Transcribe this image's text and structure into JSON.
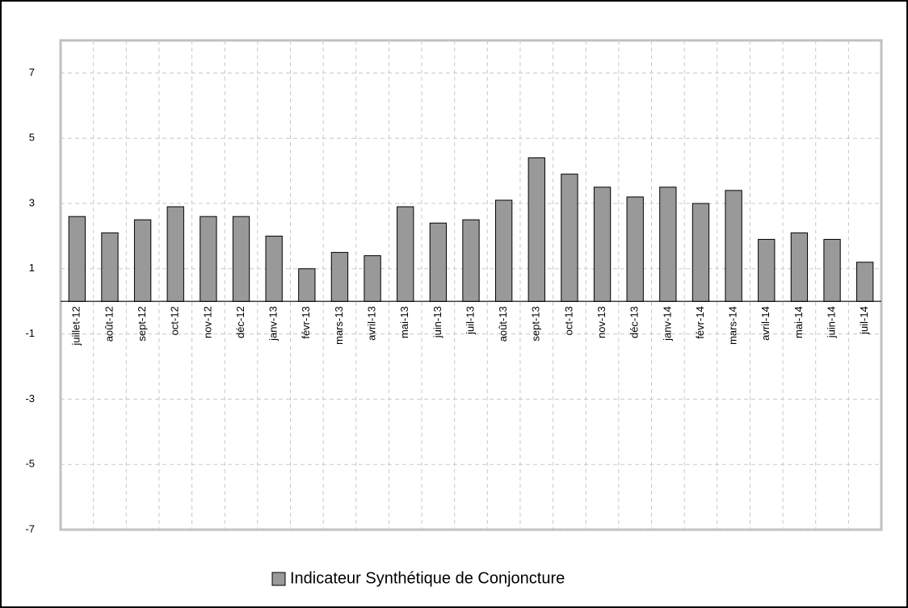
{
  "chart_data": {
    "type": "bar",
    "categories": [
      "juillet-12",
      "août-12",
      "sept-12",
      "oct-12",
      "nov-12",
      "déc-12",
      "janv-13",
      "févr-13",
      "mars-13",
      "avril-13",
      "mai-13",
      "juin-13",
      "juil-13",
      "août-13",
      "sept-13",
      "oct-13",
      "nov-13",
      "déc-13",
      "janv-14",
      "févr-14",
      "mars-14",
      "avril-14",
      "mai-14",
      "juin-14",
      "juil-14"
    ],
    "series": [
      {
        "name": "Indicateur Synthétique de Conjoncture",
        "color": "#999999",
        "values": [
          2.6,
          2.1,
          2.5,
          2.9,
          2.6,
          2.6,
          2.0,
          1.0,
          1.5,
          1.4,
          2.9,
          2.4,
          2.5,
          3.1,
          4.4,
          3.9,
          3.5,
          3.2,
          3.5,
          3.0,
          3.4,
          1.9,
          2.1,
          1.9,
          1.2
        ]
      }
    ],
    "ylim": [
      -7,
      8
    ],
    "yticks": [
      -7,
      -5,
      -3,
      -1,
      1,
      3,
      5,
      7
    ],
    "grid": true,
    "legend": "bottom"
  }
}
